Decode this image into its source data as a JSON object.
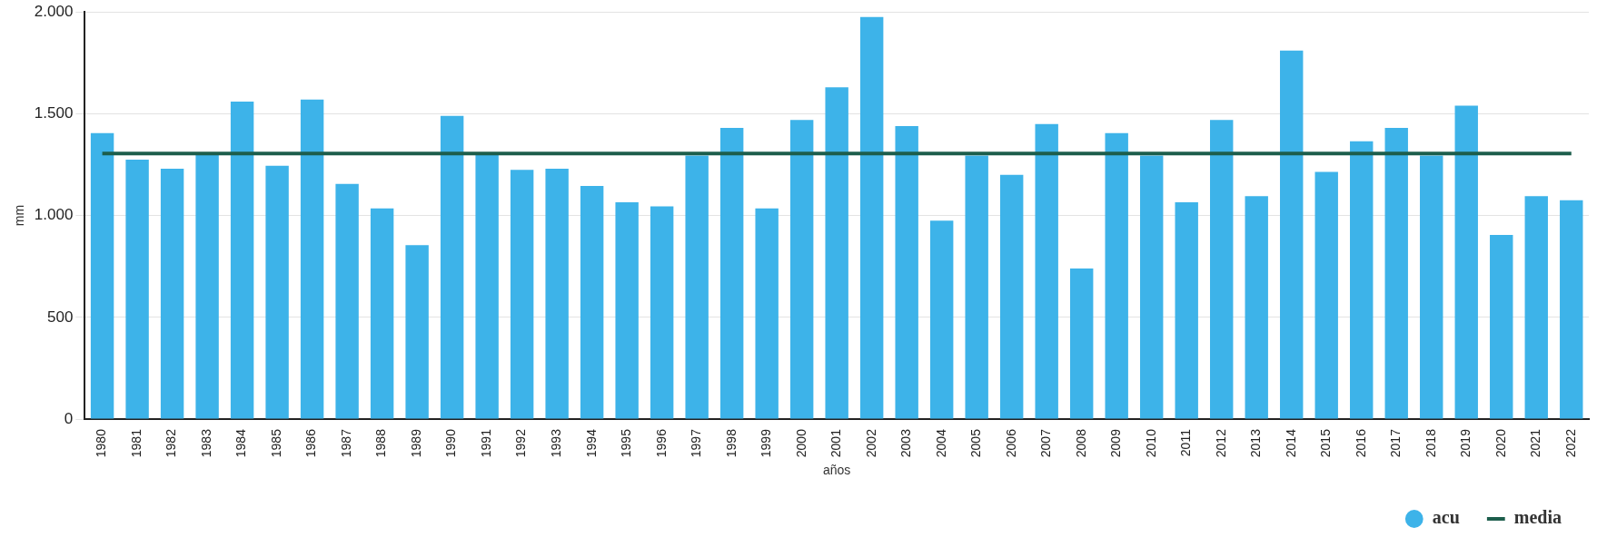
{
  "chart_data": {
    "type": "bar",
    "xlabel": "años",
    "ylabel": "mm",
    "categories": [
      "1980",
      "1981",
      "1982",
      "1983",
      "1984",
      "1985",
      "1986",
      "1987",
      "1988",
      "1989",
      "1990",
      "1991",
      "1992",
      "1993",
      "1994",
      "1995",
      "1996",
      "1997",
      "1998",
      "1999",
      "2000",
      "2001",
      "2002",
      "2003",
      "2004",
      "2005",
      "2006",
      "2007",
      "2008",
      "2009",
      "2010",
      "2011",
      "2012",
      "2013",
      "2014",
      "2015",
      "2016",
      "2017",
      "2018",
      "2019",
      "2020",
      "2021",
      "2022"
    ],
    "series": [
      {
        "name": "acu",
        "color": "#3db3e9",
        "values": [
          1405,
          1275,
          1230,
          1300,
          1560,
          1245,
          1570,
          1155,
          1035,
          855,
          1490,
          1300,
          1225,
          1230,
          1145,
          1065,
          1045,
          1295,
          1430,
          1035,
          1470,
          1630,
          1975,
          1440,
          975,
          1295,
          1200,
          1450,
          740,
          1405,
          1295,
          1065,
          1470,
          1095,
          1810,
          1215,
          1365,
          1430,
          1295,
          1540,
          905,
          1095,
          1075
        ]
      },
      {
        "name": "media",
        "type": "line",
        "color": "#1d5e4c",
        "values": [
          1305,
          1305,
          1305,
          1305,
          1305,
          1305,
          1305,
          1305,
          1305,
          1305,
          1305,
          1305,
          1305,
          1305,
          1305,
          1305,
          1305,
          1305,
          1305,
          1305,
          1305,
          1305,
          1305,
          1305,
          1305,
          1305,
          1305,
          1305,
          1305,
          1305,
          1305,
          1305,
          1305,
          1305,
          1305,
          1305,
          1305,
          1305,
          1305,
          1305,
          1305,
          1305,
          1305
        ]
      }
    ],
    "ylim": [
      0,
      2000
    ],
    "yticks": [
      0,
      500,
      {
        "value": 1000,
        "label": "1.000"
      },
      {
        "value": 1500,
        "label": "1.500"
      },
      {
        "value": 2000,
        "label": "2.000"
      }
    ],
    "grid": "y",
    "legend": "bottom right",
    "marker": "none"
  }
}
